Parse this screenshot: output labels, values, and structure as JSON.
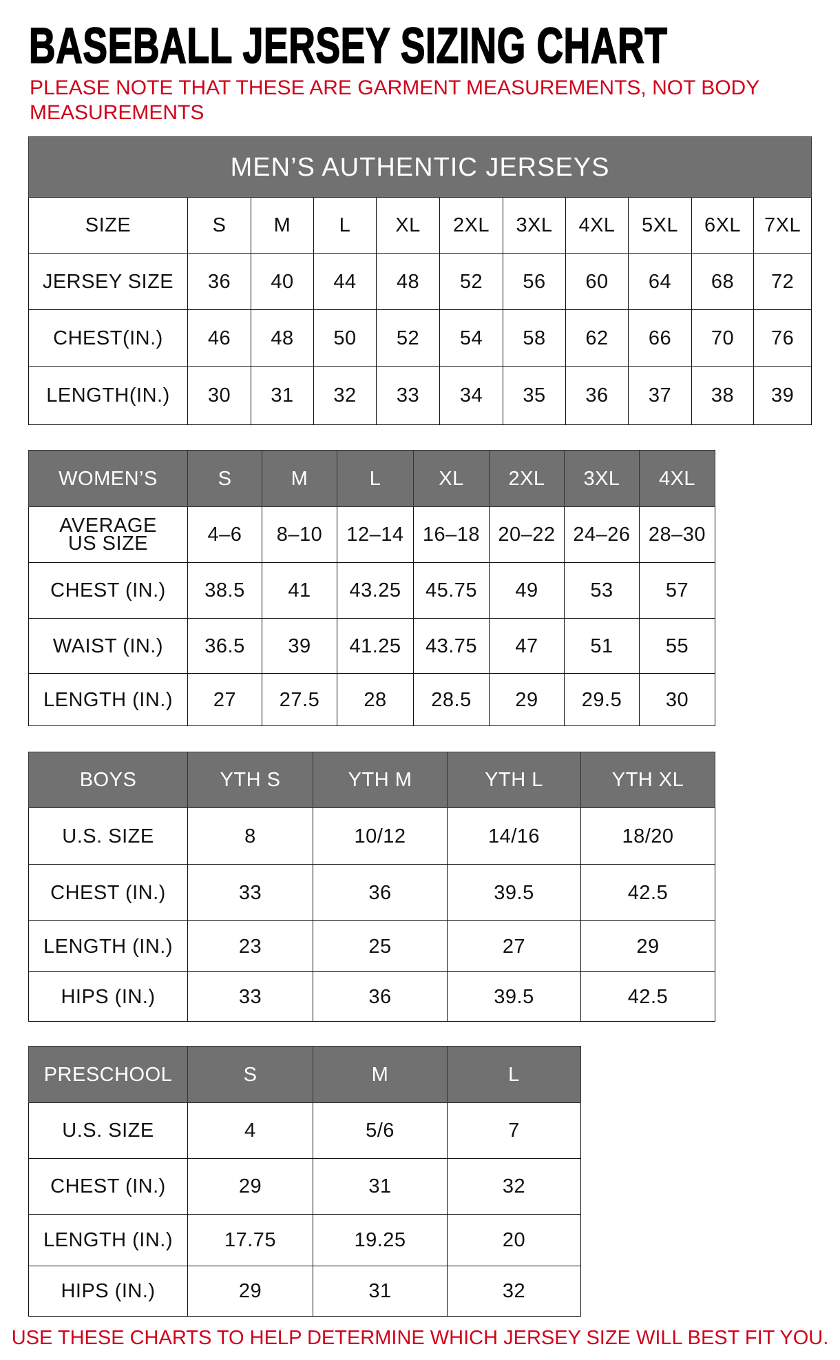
{
  "title": "BASEBALL JERSEY SIZING CHART",
  "note": "PLEASE NOTE THAT THESE ARE GARMENT MEASUREMENTS, NOT BODY MEASUREMENTS",
  "footer": "USE THESE CHARTS TO HELP DETERMINE WHICH JERSEY SIZE WILL BEST FIT YOU.",
  "colors": {
    "header_bg": "#717171",
    "note_red": "#d0021b"
  },
  "tables": [
    {
      "id": "mens",
      "banner": "MEN’S AUTHENTIC JERSEYS",
      "header": [
        "SIZE",
        "S",
        "M",
        "L",
        "XL",
        "2XL",
        "3XL",
        "4XL",
        "5XL",
        "6XL",
        "7XL"
      ],
      "header_style": "plain",
      "rows": [
        [
          "JERSEY SIZE",
          "36",
          "40",
          "44",
          "48",
          "52",
          "56",
          "60",
          "64",
          "68",
          "72"
        ],
        [
          "CHEST(IN.)",
          "46",
          "48",
          "50",
          "52",
          "54",
          "58",
          "62",
          "66",
          "70",
          "76"
        ],
        [
          "LENGTH(IN.)",
          "30",
          "31",
          "32",
          "33",
          "34",
          "35",
          "36",
          "37",
          "38",
          "39"
        ]
      ]
    },
    {
      "id": "womens",
      "header": [
        "WOMEN’S",
        "S",
        "M",
        "L",
        "XL",
        "2XL",
        "3XL",
        "4XL"
      ],
      "header_style": "gray",
      "rows": [
        [
          "AVERAGE US SIZE",
          "4–6",
          "8–10",
          "12–14",
          "16–18",
          "20–22",
          "24–26",
          "28–30"
        ],
        [
          "CHEST (IN.)",
          "38.5",
          "41",
          "43.25",
          "45.75",
          "49",
          "53",
          "57"
        ],
        [
          "WAIST (IN.)",
          "36.5",
          "39",
          "41.25",
          "43.75",
          "47",
          "51",
          "55"
        ],
        [
          "LENGTH (IN.)",
          "27",
          "27.5",
          "28",
          "28.5",
          "29",
          "29.5",
          "30"
        ]
      ]
    },
    {
      "id": "boys",
      "header": [
        "BOYS",
        "YTH S",
        "YTH M",
        "YTH L",
        "YTH XL"
      ],
      "header_style": "gray",
      "rows": [
        [
          "U.S. SIZE",
          "8",
          "10/12",
          "14/16",
          "18/20"
        ],
        [
          "CHEST (IN.)",
          "33",
          "36",
          "39.5",
          "42.5"
        ],
        [
          "LENGTH (IN.)",
          "23",
          "25",
          "27",
          "29"
        ],
        [
          "HIPS (IN.)",
          "33",
          "36",
          "39.5",
          "42.5"
        ]
      ]
    },
    {
      "id": "preschool",
      "header": [
        "PRESCHOOL",
        "S",
        "M",
        "L"
      ],
      "header_style": "gray",
      "rows": [
        [
          "U.S. SIZE",
          "4",
          "5/6",
          "7"
        ],
        [
          "CHEST (IN.)",
          "29",
          "31",
          "32"
        ],
        [
          "LENGTH (IN.)",
          "17.75",
          "19.25",
          "20"
        ],
        [
          "HIPS (IN.)",
          "29",
          "31",
          "32"
        ]
      ]
    }
  ]
}
